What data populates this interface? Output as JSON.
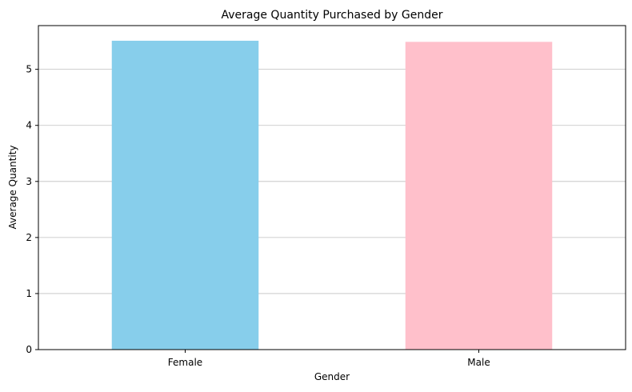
{
  "chart_data": {
    "type": "bar",
    "title": "Average Quantity Purchased by Gender",
    "xlabel": "Gender",
    "ylabel": "Average Quantity",
    "categories": [
      "Female",
      "Male"
    ],
    "values": [
      5.51,
      5.49
    ],
    "colors": [
      "#87ceeb",
      "#ffc0cb"
    ],
    "ylim": [
      0,
      5.78
    ],
    "yticks": [
      0,
      1,
      2,
      3,
      4,
      5
    ],
    "grid": "y",
    "legend": "none"
  }
}
